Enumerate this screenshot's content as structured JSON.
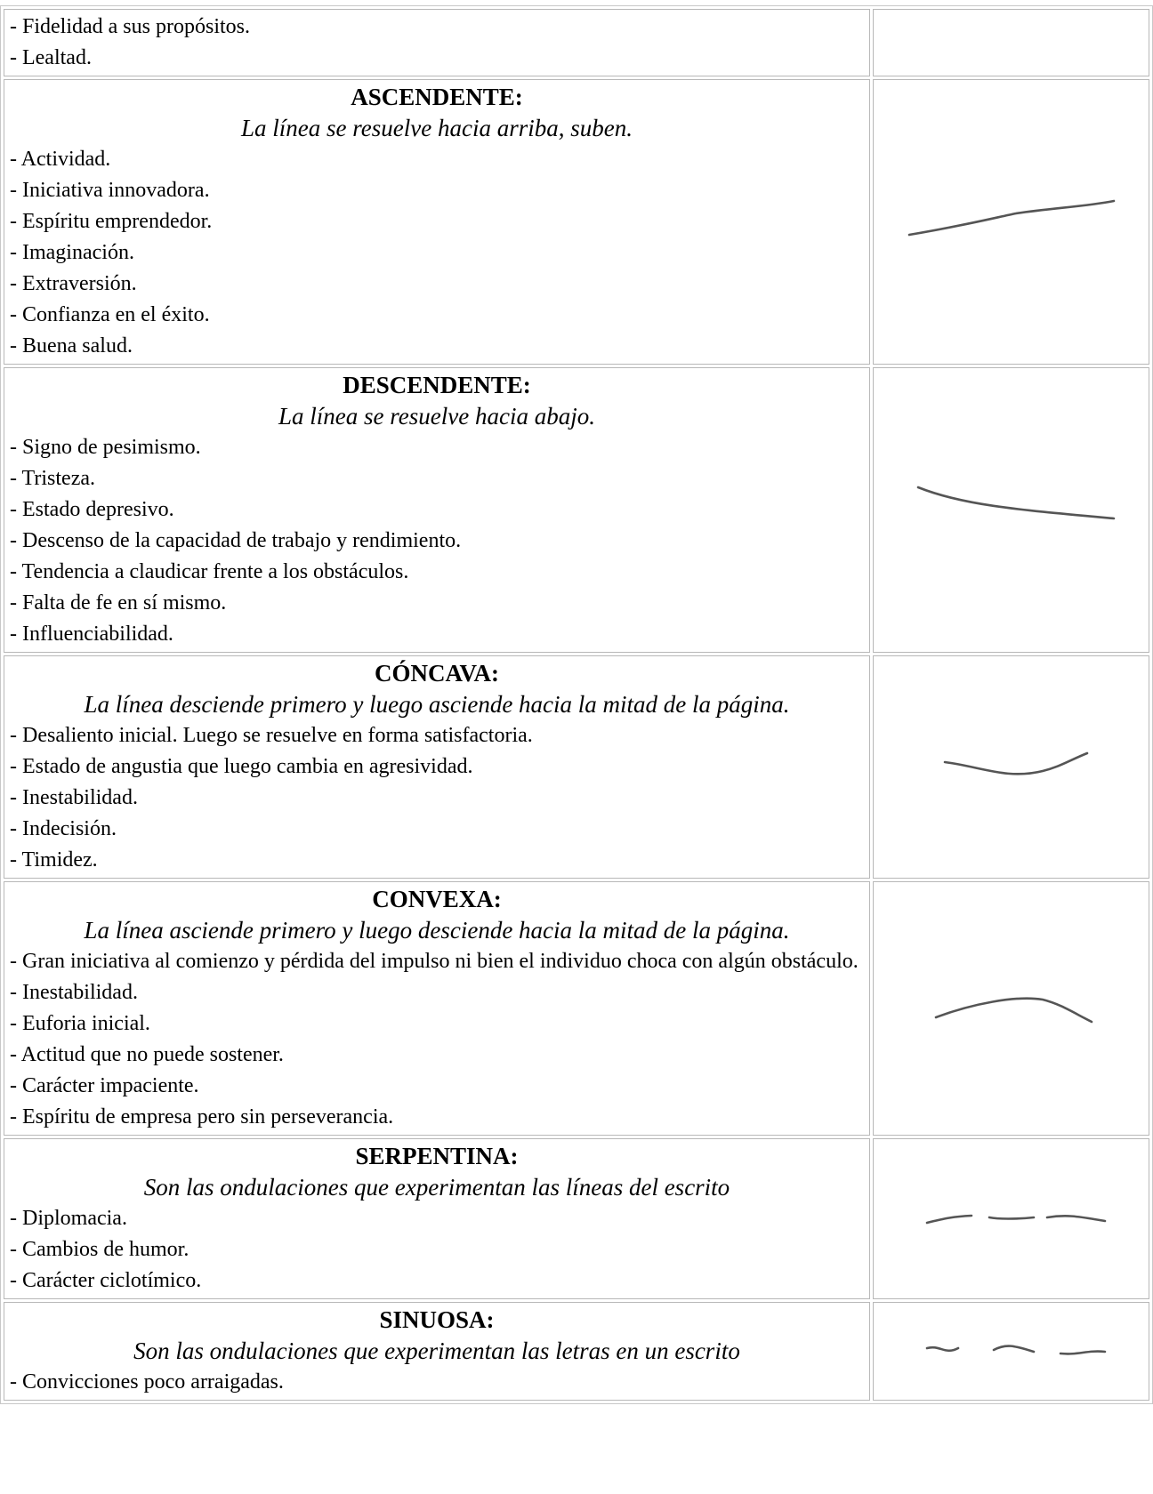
{
  "table": {
    "rows": [
      {
        "items": [
          "- Fidelidad a sus propósitos.",
          "- Lealtad."
        ]
      },
      {
        "title": "ASCENDENTE:",
        "subtitle": "La línea se resuelve hacia arriba, suben.",
        "items": [
          "- Actividad.",
          "- Iniciativa innovadora.",
          "- Espíritu emprendedor.",
          "- Imaginación.",
          "- Extraversión.",
          "- Confianza en el éxito.",
          "- Buena salud."
        ]
      },
      {
        "title": "DESCENDENTE:",
        "subtitle": "La línea se resuelve hacia abajo.",
        "items": [
          "- Signo de pesimismo.",
          "- Tristeza.",
          "- Estado depresivo.",
          "- Descenso de la capacidad de trabajo y rendimiento.",
          "- Tendencia a claudicar frente a los obstáculos.",
          "- Falta de fe en sí mismo.",
          "- Influenciabilidad."
        ]
      },
      {
        "title": "CÓNCAVA:",
        "subtitle": "La línea desciende primero y luego asciende hacia la mitad de la página.",
        "items": [
          "- Desaliento inicial. Luego se resuelve en forma satisfactoria.",
          "- Estado de angustia que luego cambia en agresividad.",
          "- Inestabilidad.",
          "- Indecisión.",
          "- Timidez."
        ]
      },
      {
        "title": "CONVEXA:",
        "subtitle": "La línea asciende primero y luego desciende hacia la mitad de la página.",
        "items": [
          "- Gran iniciativa al comienzo y pérdida del impulso ni bien el individuo choca con algún obstáculo.",
          "- Inestabilidad.",
          "- Euforia inicial.",
          "- Actitud que no puede sostener.",
          "- Carácter impaciente.",
          "- Espíritu de empresa pero sin perseverancia."
        ]
      },
      {
        "title": "SERPENTINA:",
        "subtitle": "Son las ondulaciones que experimentan las líneas del escrito",
        "items": [
          "- Diplomacia.",
          "- Cambios de humor.",
          "- Carácter ciclotímico."
        ]
      },
      {
        "title": "SINUOSA:",
        "subtitle": "Son las ondulaciones que experimentan las letras en un escrito",
        "items": [
          "- Convicciones poco arraigadas."
        ]
      }
    ]
  }
}
